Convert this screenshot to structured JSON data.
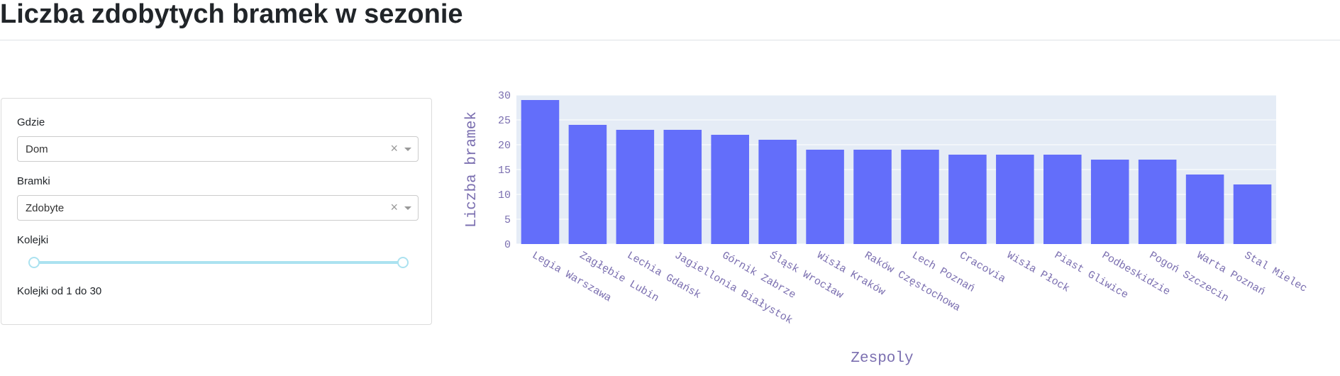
{
  "header": {
    "title": "Liczba zdobytych bramek w sezonie"
  },
  "filters": {
    "location": {
      "label": "Gdzie",
      "value": "Dom",
      "clear": "×"
    },
    "goals": {
      "label": "Bramki",
      "value": "Zdobyte",
      "clear": "×"
    },
    "rounds": {
      "label": "Kolejki",
      "min": 1,
      "max": 30,
      "value": [
        1,
        30
      ],
      "summary": "Kolejki od 1 do 30"
    }
  },
  "colors": {
    "bar": "#636efa",
    "plot_bg": "#e5ecf6",
    "axis_text": "#7b6fb0",
    "slider": "#abe2f0"
  },
  "chart_data": {
    "type": "bar",
    "categories": [
      "Legia Warszawa",
      "Zagłębie Lubin",
      "Lechia Gdańsk",
      "Jagiellonia Białystok",
      "Górnik Zabrze",
      "Śląsk Wrocław",
      "Wisła Kraków",
      "Raków Częstochowa",
      "Lech Poznań",
      "Cracovia",
      "Wisła Płock",
      "Piast Gliwice",
      "Podbeskidzie",
      "Pogoń Szczecin",
      "Warta Poznań",
      "Stal Mielec"
    ],
    "values": [
      29,
      24,
      23,
      23,
      22,
      21,
      19,
      19,
      19,
      18,
      18,
      18,
      17,
      17,
      14,
      12
    ],
    "xlabel": "Zespoly",
    "ylabel": "Liczba bramek",
    "ylim": [
      0,
      30
    ],
    "yticks": [
      0,
      5,
      10,
      15,
      20,
      25,
      30
    ],
    "grid": true
  }
}
